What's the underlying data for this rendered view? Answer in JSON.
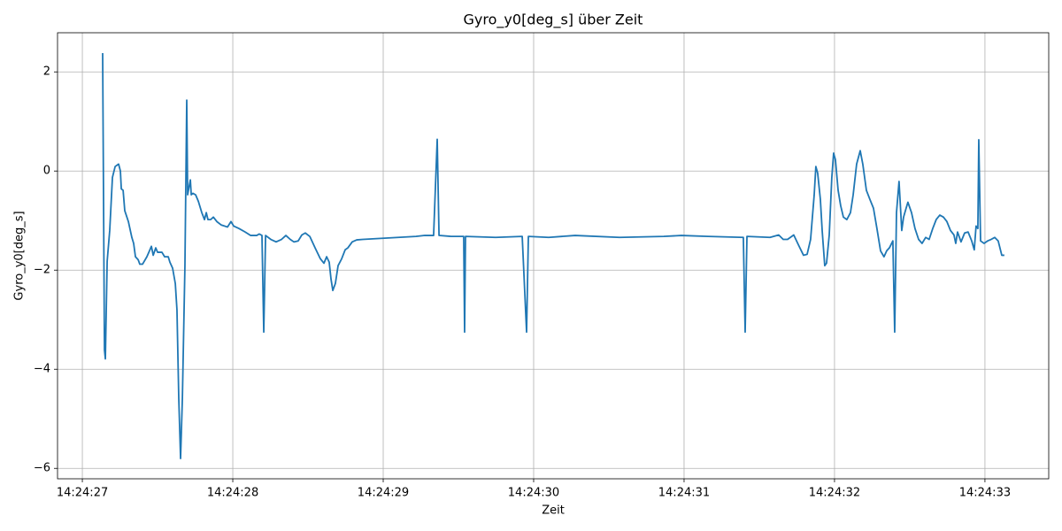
{
  "chart_data": {
    "type": "line",
    "title": "Gyro_y0[deg_s] über Zeit",
    "xlabel": "Zeit",
    "ylabel": "Gyro_y0[deg_s]",
    "color": "#1f77b4",
    "grid": true,
    "xlim": [
      "14:24:26.835",
      "14:24:33.424"
    ],
    "xticks": [
      "14:24:27",
      "14:24:28",
      "14:24:29",
      "14:24:30",
      "14:24:31",
      "14:24:32",
      "14:24:33"
    ],
    "ylim": [
      -6.21,
      2.79
    ],
    "yticks": [
      {
        "value": -6,
        "label": "−6"
      },
      {
        "value": -4,
        "label": "−4"
      },
      {
        "value": -2,
        "label": "−2"
      },
      0,
      2
    ],
    "x": [
      "14:24:27.135",
      "14:24:27.147",
      "14:24:27.153",
      "14:24:27.165",
      "14:24:27.182",
      "14:24:27.200",
      "14:24:27.218",
      "14:24:27.241",
      "14:24:27.253",
      "14:24:27.259",
      "14:24:27.271",
      "14:24:27.282",
      "14:24:27.306",
      "14:24:27.329",
      "14:24:27.341",
      "14:24:27.353",
      "14:24:27.371",
      "14:24:27.382",
      "14:24:27.400",
      "14:24:27.429",
      "14:24:27.459",
      "14:24:27.471",
      "14:24:27.488",
      "14:24:27.500",
      "14:24:27.529",
      "14:24:27.547",
      "14:24:27.571",
      "14:24:27.582",
      "14:24:27.600",
      "14:24:27.618",
      "14:24:27.629",
      "14:24:27.641",
      "14:24:27.653",
      "14:24:27.665",
      "14:24:27.682",
      "14:24:27.694",
      "14:24:27.700",
      "14:24:27.718",
      "14:24:27.724",
      "14:24:27.735",
      "14:24:27.753",
      "14:24:27.771",
      "14:24:27.794",
      "14:24:27.812",
      "14:24:27.824",
      "14:24:27.835",
      "14:24:27.853",
      "14:24:27.871",
      "14:24:27.894",
      "14:24:27.924",
      "14:24:27.965",
      "14:24:27.988",
      "14:24:28.006",
      "14:24:28.041",
      "14:24:28.082",
      "14:24:28.118",
      "14:24:28.159",
      "14:24:28.176",
      "14:24:28.194",
      "14:24:28.206",
      "14:24:28.218",
      "14:24:28.253",
      "14:24:28.288",
      "14:24:28.324",
      "14:24:28.353",
      "14:24:28.382",
      "14:24:28.406",
      "14:24:28.435",
      "14:24:28.459",
      "14:24:28.482",
      "14:24:28.512",
      "14:24:28.547",
      "14:24:28.582",
      "14:24:28.606",
      "14:24:28.624",
      "14:24:28.641",
      "14:24:28.653",
      "14:24:28.665",
      "14:24:28.682",
      "14:24:28.700",
      "14:24:28.724",
      "14:24:28.747",
      "14:24:28.765",
      "14:24:28.794",
      "14:24:28.824",
      "14:24:28.865",
      "14:24:28.982",
      "14:24:29.100",
      "14:24:29.218",
      "14:24:29.276",
      "14:24:29.335",
      "14:24:29.359",
      "14:24:29.371",
      "14:24:29.453",
      "14:24:29.535",
      "14:24:29.541",
      "14:24:29.547",
      "14:24:29.747",
      "14:24:29.924",
      "14:24:29.953",
      "14:24:29.965",
      "14:24:30.100",
      "14:24:30.276",
      "14:24:30.571",
      "14:24:30.865",
      "14:24:30.982",
      "14:24:31.159",
      "14:24:31.394",
      "14:24:31.406",
      "14:24:31.418",
      "14:24:31.571",
      "14:24:31.629",
      "14:24:31.659",
      "14:24:31.688",
      "14:24:31.729",
      "14:24:31.765",
      "14:24:31.794",
      "14:24:31.818",
      "14:24:31.841",
      "14:24:31.865",
      "14:24:31.876",
      "14:24:31.888",
      "14:24:31.906",
      "14:24:31.918",
      "14:24:31.935",
      "14:24:31.947",
      "14:24:31.965",
      "14:24:31.982",
      "14:24:31.994",
      "14:24:32.006",
      "14:24:32.024",
      "14:24:32.041",
      "14:24:32.059",
      "14:24:32.082",
      "14:24:32.106",
      "14:24:32.124",
      "14:24:32.147",
      "14:24:32.171",
      "14:24:32.188",
      "14:24:32.212",
      "14:24:32.235",
      "14:24:32.259",
      "14:24:32.282",
      "14:24:32.306",
      "14:24:32.329",
      "14:24:32.347",
      "14:24:32.365",
      "14:24:32.388",
      "14:24:32.400",
      "14:24:32.412",
      "14:24:32.429",
      "14:24:32.447",
      "14:24:32.459",
      "14:24:32.476",
      "14:24:32.488",
      "14:24:32.512",
      "14:24:32.535",
      "14:24:32.559",
      "14:24:32.582",
      "14:24:32.606",
      "14:24:32.629",
      "14:24:32.653",
      "14:24:32.676",
      "14:24:32.700",
      "14:24:32.724",
      "14:24:32.747",
      "14:24:32.771",
      "14:24:32.794",
      "14:24:32.806",
      "14:24:32.818",
      "14:24:32.841",
      "14:24:32.865",
      "14:24:32.888",
      "14:24:32.912",
      "14:24:32.929",
      "14:24:32.941",
      "14:24:32.953",
      "14:24:32.959",
      "14:24:32.971",
      "14:24:32.994",
      "14:24:33.018",
      "14:24:33.041",
      "14:24:33.065",
      "14:24:33.088",
      "14:24:33.112",
      "14:24:33.129"
    ],
    "values": [
      2.38,
      -3.61,
      -3.79,
      -1.82,
      -1.2,
      -0.13,
      0.09,
      0.14,
      0,
      -0.36,
      -0.39,
      -0.8,
      -1.02,
      -1.34,
      -1.46,
      -1.73,
      -1.79,
      -1.88,
      -1.88,
      -1.73,
      -1.52,
      -1.7,
      -1.55,
      -1.64,
      -1.64,
      -1.73,
      -1.73,
      -1.84,
      -1.96,
      -2.27,
      -2.8,
      -4.59,
      -5.8,
      -4.59,
      -1.91,
      1.43,
      -0.48,
      -0.18,
      -0.48,
      -0.45,
      -0.48,
      -0.61,
      -0.84,
      -0.98,
      -0.84,
      -0.98,
      -0.98,
      -0.93,
      -1.02,
      -1.09,
      -1.13,
      -1.02,
      -1.11,
      -1.16,
      -1.23,
      -1.3,
      -1.3,
      -1.27,
      -1.3,
      -3.25,
      -1.3,
      -1.38,
      -1.43,
      -1.38,
      -1.3,
      -1.38,
      -1.43,
      -1.41,
      -1.29,
      -1.25,
      -1.32,
      -1.55,
      -1.77,
      -1.86,
      -1.73,
      -1.84,
      -2.18,
      -2.41,
      -2.27,
      -1.91,
      -1.77,
      -1.59,
      -1.55,
      -1.43,
      -1.39,
      -1.38,
      -1.36,
      -1.34,
      -1.32,
      -1.3,
      -1.3,
      0.64,
      -1.3,
      -1.32,
      -1.32,
      -3.25,
      -1.32,
      -1.34,
      -1.32,
      -3.25,
      -1.32,
      -1.34,
      -1.3,
      -1.34,
      -1.32,
      -1.3,
      -1.32,
      -1.34,
      -3.25,
      -1.32,
      -1.34,
      -1.29,
      -1.38,
      -1.38,
      -1.29,
      -1.52,
      -1.7,
      -1.68,
      -1.38,
      -0.48,
      0.09,
      -0.04,
      -0.57,
      -1.2,
      -1.91,
      -1.86,
      -1.29,
      -0.13,
      0.36,
      0.23,
      -0.39,
      -0.7,
      -0.93,
      -0.98,
      -0.84,
      -0.48,
      0.14,
      0.41,
      0.14,
      -0.39,
      -0.57,
      -0.75,
      -1.16,
      -1.61,
      -1.73,
      -1.61,
      -1.55,
      -1.41,
      -3.25,
      -0.84,
      -0.21,
      -1.2,
      -0.93,
      -0.75,
      -0.63,
      -0.84,
      -1.16,
      -1.38,
      -1.46,
      -1.34,
      -1.38,
      -1.16,
      -0.98,
      -0.89,
      -0.93,
      -1.02,
      -1.2,
      -1.29,
      -1.46,
      -1.23,
      -1.43,
      -1.25,
      -1.23,
      -1.41,
      -1.59,
      -1.11,
      -1.16,
      0.63,
      -1.41,
      -1.46,
      -1.41,
      -1.38,
      -1.34,
      -1.41,
      -1.7,
      -1.7
    ]
  }
}
